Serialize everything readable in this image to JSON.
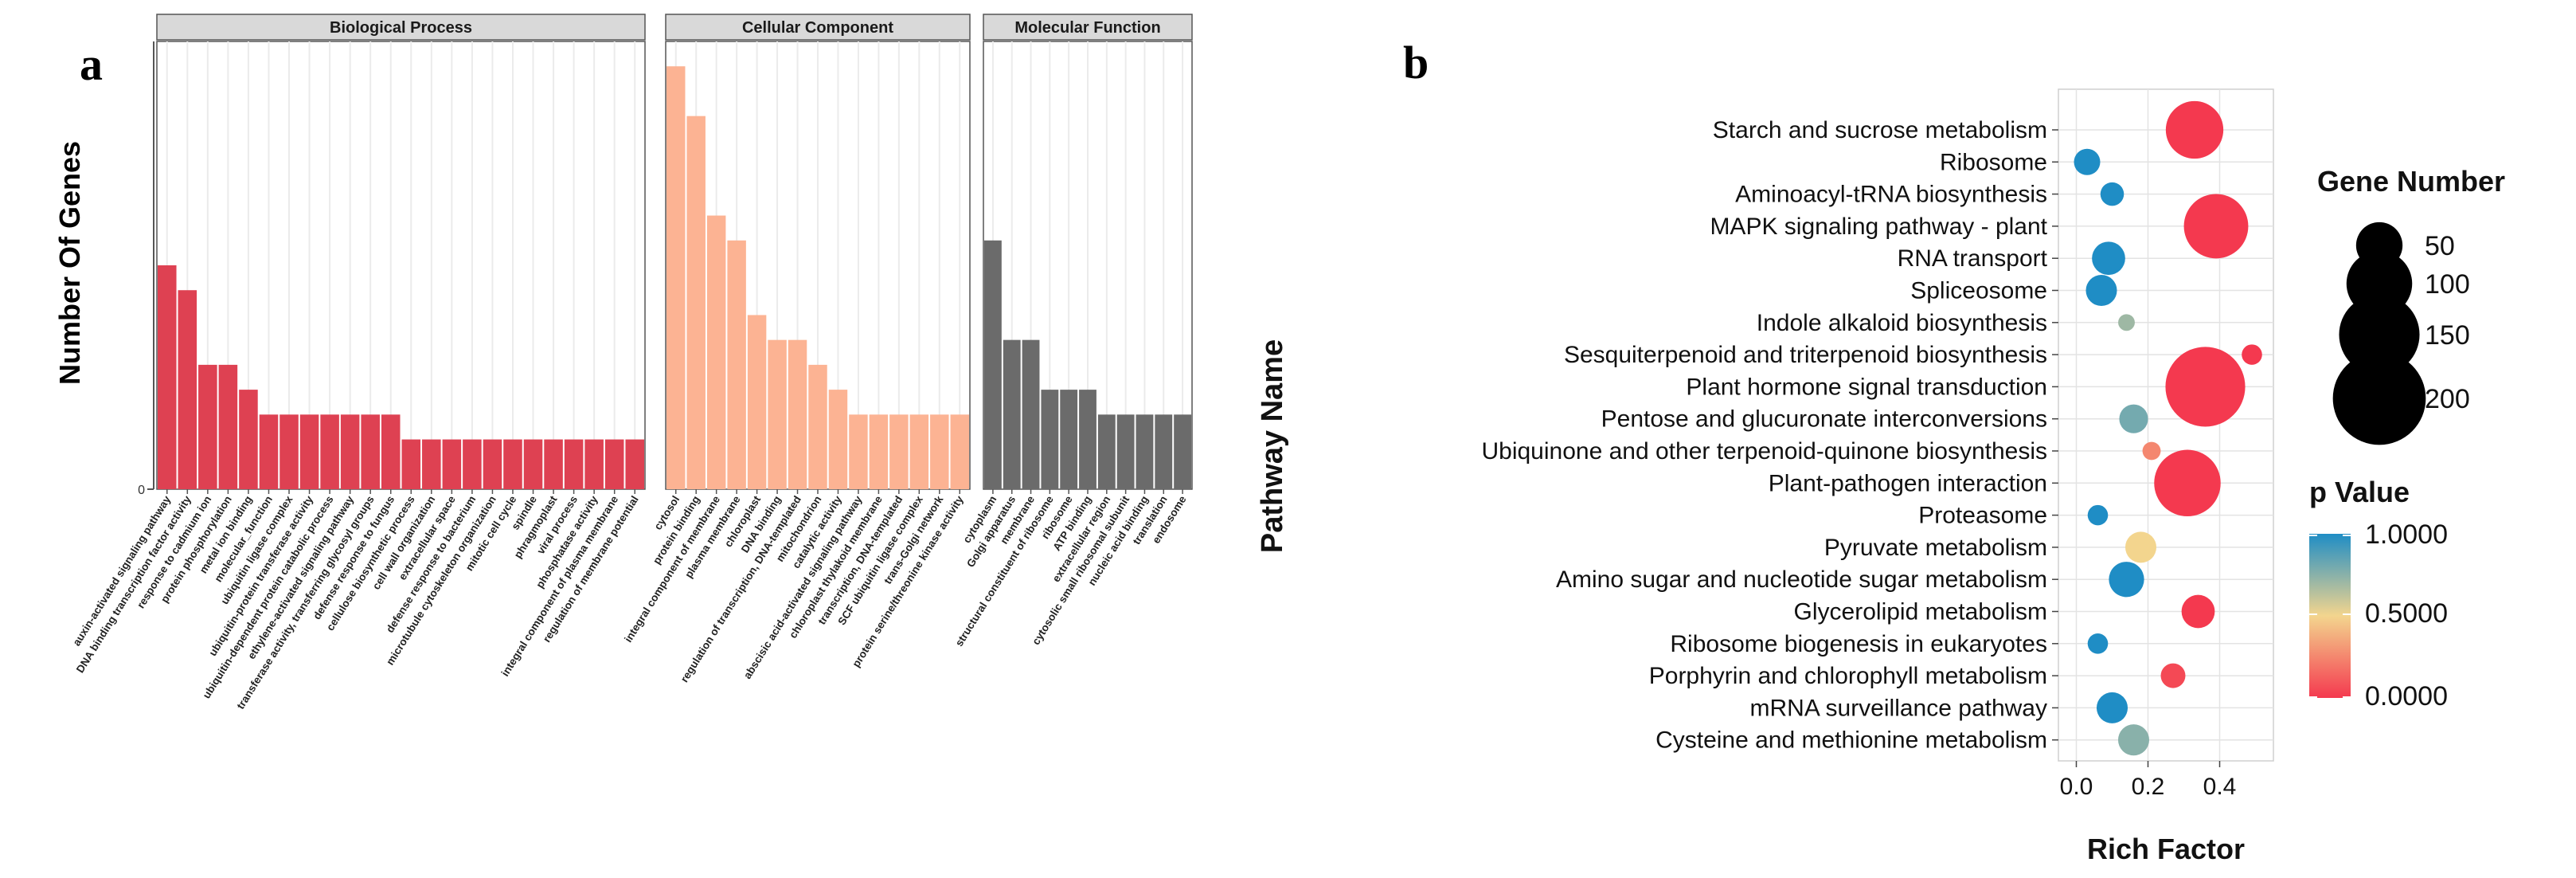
{
  "panels": {
    "a": {
      "letter": "a",
      "ylabel": "Number Of Genes",
      "y_zero_label": "0",
      "groups": [
        {
          "name": "Biological Process",
          "color": "#DE4152",
          "terms": [
            {
              "term": "auxin-activated signaling pathway",
              "value": 9
            },
            {
              "term": "DNA binding transcription factor activity",
              "value": 8
            },
            {
              "term": "response to cadmium ion",
              "value": 5
            },
            {
              "term": "protein phosphorylation",
              "value": 5
            },
            {
              "term": "metal ion binding",
              "value": 4
            },
            {
              "term": "molecular_function",
              "value": 3
            },
            {
              "term": "ubiquitin ligase complex",
              "value": 3
            },
            {
              "term": "ubiquitin-protein transferase activity",
              "value": 3
            },
            {
              "term": "ubiquitin-dependent protein catabolic process",
              "value": 3
            },
            {
              "term": "ethylene-activated signaling pathway",
              "value": 3
            },
            {
              "term": "transferase activity, transferring glycosyl groups",
              "value": 3
            },
            {
              "term": "defense response to fungus",
              "value": 3
            },
            {
              "term": "cellulose biosynthetic process",
              "value": 2
            },
            {
              "term": "cell wall organization",
              "value": 2
            },
            {
              "term": "extracellular space",
              "value": 2
            },
            {
              "term": "defense response to bacterium",
              "value": 2
            },
            {
              "term": "microtubule cytoskeleton organization",
              "value": 2
            },
            {
              "term": "mitotic cell cycle",
              "value": 2
            },
            {
              "term": "spindle",
              "value": 2
            },
            {
              "term": "phragmoplast",
              "value": 2
            },
            {
              "term": "viral process",
              "value": 2
            },
            {
              "term": "phosphatase activity",
              "value": 2
            },
            {
              "term": "integral component of plasma membrane",
              "value": 2
            },
            {
              "term": "regulation of membrane potential",
              "value": 2
            }
          ]
        },
        {
          "name": "Cellular Component",
          "color": "#FCB393",
          "terms": [
            {
              "term": "cytosol",
              "value": 17
            },
            {
              "term": "protein binding",
              "value": 15
            },
            {
              "term": "integral component of membrane",
              "value": 11
            },
            {
              "term": "plasma membrane",
              "value": 10
            },
            {
              "term": "chloroplast",
              "value": 7
            },
            {
              "term": "DNA binding",
              "value": 6
            },
            {
              "term": "regulation of transcription, DNA-templated",
              "value": 6
            },
            {
              "term": "mitochondrion",
              "value": 5
            },
            {
              "term": "catalytic activity",
              "value": 4
            },
            {
              "term": "abscisic acid-activated signaling pathway",
              "value": 3
            },
            {
              "term": "chloroplast thylakoid membrane",
              "value": 3
            },
            {
              "term": "transcription, DNA-templated",
              "value": 3
            },
            {
              "term": "SCF ubiquitin ligase complex",
              "value": 3
            },
            {
              "term": "trans-Golgi network",
              "value": 3
            },
            {
              "term": "protein serine/threonine kinase activity",
              "value": 3
            }
          ]
        },
        {
          "name": "Molecular Function",
          "color": "#6B6B6B",
          "terms": [
            {
              "term": "cytoplasm",
              "value": 10
            },
            {
              "term": "Golgi apparatus",
              "value": 6
            },
            {
              "term": "membrane",
              "value": 6
            },
            {
              "term": "structural constituent of ribosome",
              "value": 4
            },
            {
              "term": "ribosome",
              "value": 4
            },
            {
              "term": "ATP binding",
              "value": 4
            },
            {
              "term": "extracellular region",
              "value": 3
            },
            {
              "term": "cytosolic small ribosomal subunit",
              "value": 3
            },
            {
              "term": "nucleic acid binding",
              "value": 3
            },
            {
              "term": "translation",
              "value": 3
            },
            {
              "term": "endosome",
              "value": 3
            }
          ]
        }
      ]
    },
    "b": {
      "letter": "b"
    }
  },
  "chart_data": [
    {
      "type": "bar",
      "title": "",
      "xlabel": "",
      "ylabel": "Number Of Genes",
      "ylim": [
        0,
        18
      ],
      "note": "Faceted bar chart of GO terms by category (Biological Process, Cellular Component, Molecular Function); see panels.a.groups for values."
    },
    {
      "type": "scatter",
      "title": "",
      "xlabel": "Rich Factor",
      "ylabel": "Pathway Name",
      "xlim": [
        -0.05,
        0.55
      ],
      "xticks": [
        0.0,
        0.2,
        0.4
      ],
      "xtick_labels": [
        "0.0",
        "0.2",
        "0.4"
      ],
      "size_legend": {
        "title": "Gene Number",
        "values": [
          50,
          100,
          150,
          200
        ],
        "labels": [
          "50",
          "100",
          "150",
          "200"
        ]
      },
      "color_legend": {
        "title": "p Value",
        "labels": [
          "1.0000",
          "0.5000",
          "0.0000"
        ],
        "stops": [
          "#1F8DC5",
          "#F3D58E",
          "#F4394F"
        ]
      },
      "points": [
        {
          "pathway": "Starch and sucrose metabolism",
          "rich_factor": 0.33,
          "gene_number": 120,
          "p_value": 0.0
        },
        {
          "pathway": "Ribosome",
          "rich_factor": 0.03,
          "gene_number": 25,
          "p_value": 1.0
        },
        {
          "pathway": "Aminoacyl-tRNA biosynthesis",
          "rich_factor": 0.1,
          "gene_number": 20,
          "p_value": 1.0
        },
        {
          "pathway": "MAPK signaling pathway - plant",
          "rich_factor": 0.39,
          "gene_number": 150,
          "p_value": 0.0
        },
        {
          "pathway": "RNA transport",
          "rich_factor": 0.09,
          "gene_number": 40,
          "p_value": 1.0
        },
        {
          "pathway": "Spliceosome",
          "rich_factor": 0.07,
          "gene_number": 35,
          "p_value": 1.0
        },
        {
          "pathway": "Indole alkaloid biosynthesis",
          "rich_factor": 0.14,
          "gene_number": 10,
          "p_value": 0.7
        },
        {
          "pathway": "Sesquiterpenoid and triterpenoid biosynthesis",
          "rich_factor": 0.49,
          "gene_number": 15,
          "p_value": 0.0
        },
        {
          "pathway": "Plant hormone signal transduction",
          "rich_factor": 0.36,
          "gene_number": 230,
          "p_value": 0.0
        },
        {
          "pathway": "Pentose and glucuronate interconversions",
          "rich_factor": 0.16,
          "gene_number": 30,
          "p_value": 0.8
        },
        {
          "pathway": "Ubiquinone and other terpenoid-quinone biosynthesis",
          "rich_factor": 0.21,
          "gene_number": 12,
          "p_value": 0.25
        },
        {
          "pathway": "Plant-pathogen interaction",
          "rich_factor": 0.31,
          "gene_number": 160,
          "p_value": 0.0
        },
        {
          "pathway": "Proteasome",
          "rich_factor": 0.06,
          "gene_number": 15,
          "p_value": 1.0
        },
        {
          "pathway": "Pyruvate metabolism",
          "rich_factor": 0.18,
          "gene_number": 35,
          "p_value": 0.5
        },
        {
          "pathway": "Amino sugar and nucleotide sugar metabolism",
          "rich_factor": 0.14,
          "gene_number": 45,
          "p_value": 1.0
        },
        {
          "pathway": "Glycerolipid metabolism",
          "rich_factor": 0.34,
          "gene_number": 40,
          "p_value": 0.0
        },
        {
          "pathway": "Ribosome biogenesis in eukaryotes",
          "rich_factor": 0.06,
          "gene_number": 15,
          "p_value": 1.0
        },
        {
          "pathway": "Porphyrin and chlorophyll metabolism",
          "rich_factor": 0.27,
          "gene_number": 22,
          "p_value": 0.05
        },
        {
          "pathway": "mRNA surveillance pathway",
          "rich_factor": 0.1,
          "gene_number": 35,
          "p_value": 1.0
        },
        {
          "pathway": "Cysteine and methionine metabolism",
          "rich_factor": 0.16,
          "gene_number": 35,
          "p_value": 0.75
        }
      ]
    }
  ]
}
